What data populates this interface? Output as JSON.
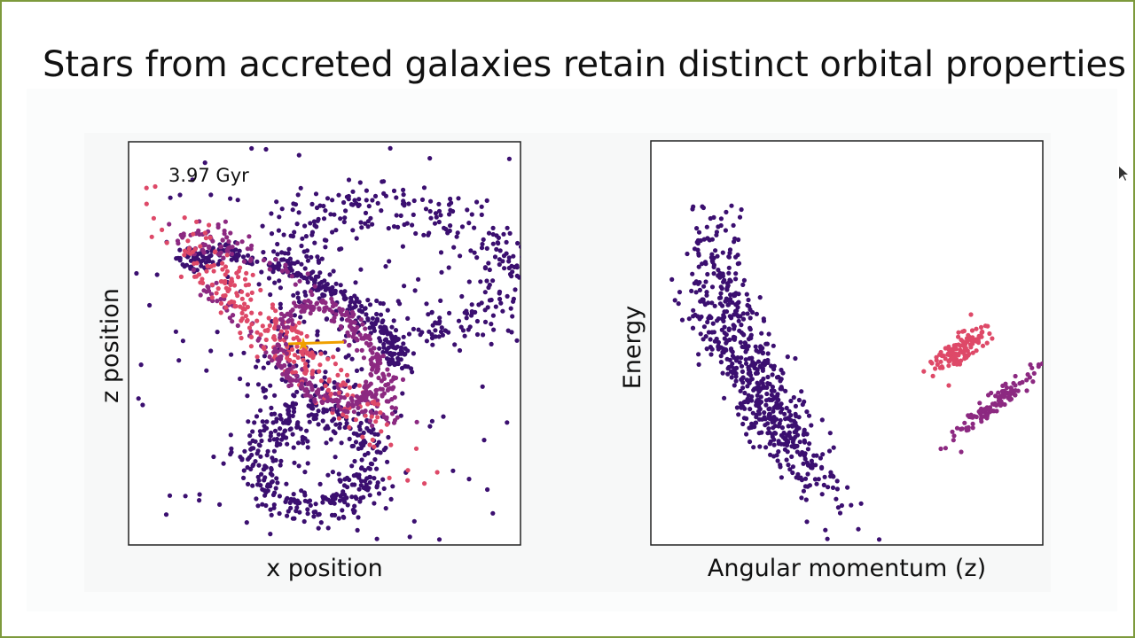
{
  "slide": {
    "title": "Stars from accreted galaxies retain distinct orbital properties",
    "plots": [
      {
        "annotation": "3.97 Gyr",
        "x_label": "x position",
        "y_label": "z position"
      },
      {
        "x_label": "Angular momentum (z)",
        "y_label": "Energy"
      }
    ]
  }
}
